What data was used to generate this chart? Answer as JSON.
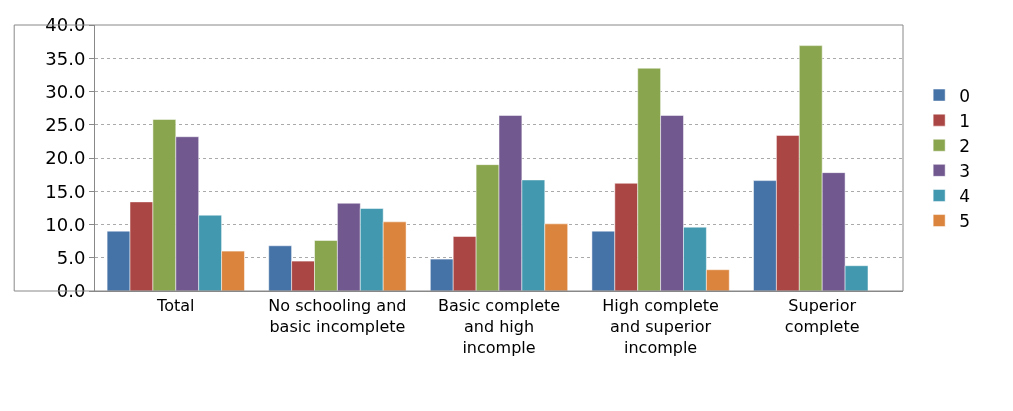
{
  "chart_data": {
    "type": "bar",
    "categories": [
      "Total",
      "No schooling and basic incomplete",
      "Basic complete and high incomple",
      "High complete and superior incomple",
      "Superior complete"
    ],
    "series": [
      {
        "name": "0",
        "color": "#4572a7",
        "values": [
          9.0,
          6.8,
          4.8,
          9.0,
          16.6
        ]
      },
      {
        "name": "1",
        "color": "#aa4643",
        "values": [
          13.4,
          4.5,
          8.2,
          16.2,
          23.4
        ]
      },
      {
        "name": "2",
        "color": "#89a54e",
        "values": [
          25.8,
          7.6,
          19.0,
          33.5,
          36.9
        ]
      },
      {
        "name": "3",
        "color": "#71588f",
        "values": [
          23.2,
          13.2,
          26.4,
          26.4,
          17.8
        ]
      },
      {
        "name": "4",
        "color": "#4198af",
        "values": [
          11.4,
          12.4,
          16.7,
          9.6,
          3.8
        ]
      },
      {
        "name": "5",
        "color": "#db843d",
        "values": [
          6.0,
          10.4,
          10.1,
          3.2,
          null
        ]
      }
    ],
    "ylim": [
      0,
      40
    ],
    "yticks": [
      {
        "value": 0,
        "label": "0.0"
      },
      {
        "value": 5,
        "label": "5.0"
      },
      {
        "value": 10,
        "label": "10.0"
      },
      {
        "value": 15,
        "label": "15.0"
      },
      {
        "value": 20,
        "label": "20.0"
      },
      {
        "value": 25,
        "label": "25.0"
      },
      {
        "value": 30,
        "label": "30.0"
      },
      {
        "value": 35,
        "label": "35.0"
      },
      {
        "value": 40,
        "label": "40.0"
      }
    ],
    "grid": "y",
    "legend": "right"
  }
}
